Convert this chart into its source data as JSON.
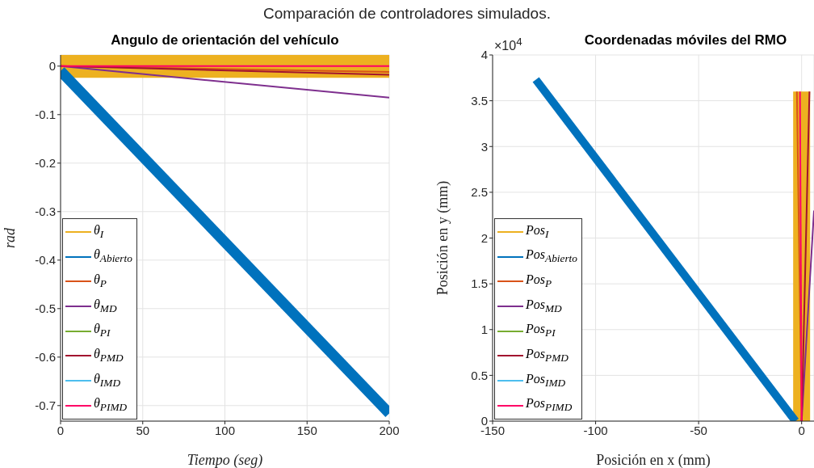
{
  "chart_data": [
    {
      "type": "line",
      "title": "Angulo de orientación del vehículo",
      "xlabel": "Tiempo (seg)",
      "ylabel": "rad",
      "annotations": [
        "Comparación de controladores simulados."
      ],
      "xlim": [
        0,
        200
      ],
      "xticks": [
        0,
        50,
        100,
        150,
        200
      ],
      "ylim": [
        -0.732,
        0.023
      ],
      "yticks": [
        -0.7,
        -0.6,
        -0.5,
        -0.4,
        -0.3,
        -0.2,
        -0.1,
        0
      ],
      "grid": true,
      "legend": "bottom left",
      "series": [
        {
          "name": "θ$_{I}$",
          "color": "#edb120",
          "x": [
            0,
            200
          ],
          "values": [
            0,
            0
          ]
        },
        {
          "name": "θ$_{Abierto}$",
          "color": "#0072bd",
          "x": [
            0,
            200
          ],
          "values": [
            -0.01,
            -0.716
          ]
        },
        {
          "name": "θ$_{P}$",
          "color": "#d95319",
          "x": [
            0,
            200
          ],
          "values": [
            0,
            -0.012
          ]
        },
        {
          "name": "θ$_{MD}$",
          "color": "#7e2f8e",
          "x": [
            0,
            200
          ],
          "values": [
            0,
            -0.065
          ]
        },
        {
          "name": "θ$_{PI}$",
          "color": "#77ac30"
        },
        {
          "name": "θ$_{PMD}$",
          "color": "#a2142f",
          "x": [
            0,
            200
          ],
          "values": [
            0,
            -0.018
          ]
        },
        {
          "name": "θ$_{IMD}$",
          "color": "#4dbeee"
        },
        {
          "name": "θ$_{PIMD}$",
          "color": "#ff0066",
          "x": [
            0,
            200
          ],
          "values": [
            0,
            0
          ]
        }
      ]
    },
    {
      "type": "line",
      "title": "Coordenadas móviles del RMO",
      "xlabel": "Posición en x (mm)",
      "ylabel": "Posición en y (mm)",
      "annotations": [
        "×10$^{4}$"
      ],
      "xlim": [
        -150,
        6
      ],
      "xticks": [
        -150,
        -100,
        -50,
        0
      ],
      "ylim": [
        0,
        4
      ],
      "yticks": [
        0,
        0.5,
        1,
        1.5,
        2,
        2.5,
        3,
        3.5,
        4
      ],
      "grid": true,
      "legend": "bottom left",
      "series": [
        {
          "name": "Pos$_{I}$",
          "color": "#edb120",
          "x": [
            0,
            0
          ],
          "values": [
            0,
            3.6
          ]
        },
        {
          "name": "Pos$_{Abierto}$",
          "color": "#0072bd",
          "x": [
            -3,
            -129
          ],
          "values": [
            0,
            3.73
          ]
        },
        {
          "name": "Pos$_{P}$",
          "color": "#d95319",
          "x": [
            0,
            -2.3
          ],
          "values": [
            0,
            3.6
          ]
        },
        {
          "name": "Pos$_{MD}$",
          "color": "#7e2f8e",
          "x": [
            0,
            6
          ],
          "values": [
            0,
            2.3
          ]
        },
        {
          "name": "Pos$_{PI}$",
          "color": "#77ac30"
        },
        {
          "name": "Pos$_{PMD}$",
          "color": "#a2142f",
          "x": [
            0,
            3.8
          ],
          "values": [
            0,
            3.6
          ]
        },
        {
          "name": "Pos$_{IMD}$",
          "color": "#4dbeee"
        },
        {
          "name": "Pos$_{PIMD}$",
          "color": "#ff0066",
          "x": [
            0,
            -0.8
          ],
          "values": [
            0,
            3.6
          ]
        }
      ]
    }
  ]
}
